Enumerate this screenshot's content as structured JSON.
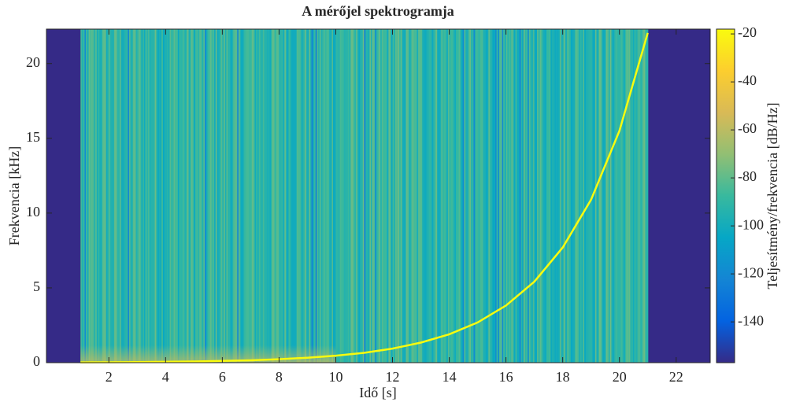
{
  "chart_data": {
    "type": "spectrogram",
    "title": "A mérőjel spektrogramja",
    "xlabel": "Idő [s]",
    "ylabel": "Frekvencia [kHz]",
    "colorbar_label": "Teljesítmény/frekvencia [dB/Hz]",
    "x": [
      1,
      2,
      3,
      4,
      5,
      6,
      7,
      8,
      9,
      10,
      11,
      12,
      13,
      14,
      15,
      16,
      17,
      18,
      19,
      20,
      21
    ],
    "values": [
      0.02,
      0.028,
      0.04,
      0.057,
      0.081,
      0.115,
      0.16,
      0.23,
      0.33,
      0.47,
      0.66,
      0.94,
      1.34,
      1.9,
      2.69,
      3.82,
      5.41,
      7.7,
      10.9,
      15.5,
      22.05
    ],
    "line_color": "#f9fb0e",
    "xlim": [
      -0.2,
      23.2
    ],
    "xticks": [
      2,
      4,
      6,
      8,
      10,
      12,
      14,
      16,
      18,
      20,
      22
    ],
    "ylim": [
      0,
      22.3
    ],
    "yticks": [
      0,
      5,
      10,
      15,
      20
    ],
    "clim": [
      -157,
      -18
    ],
    "cticks": [
      -140,
      -120,
      -100,
      -80,
      -60,
      -40,
      -20
    ],
    "colormap": [
      "#352a87",
      "#0363e1",
      "#1485d4",
      "#06a7c6",
      "#38b99e",
      "#92bf73",
      "#d9ba56",
      "#fcce2e",
      "#f9fb0e"
    ]
  }
}
